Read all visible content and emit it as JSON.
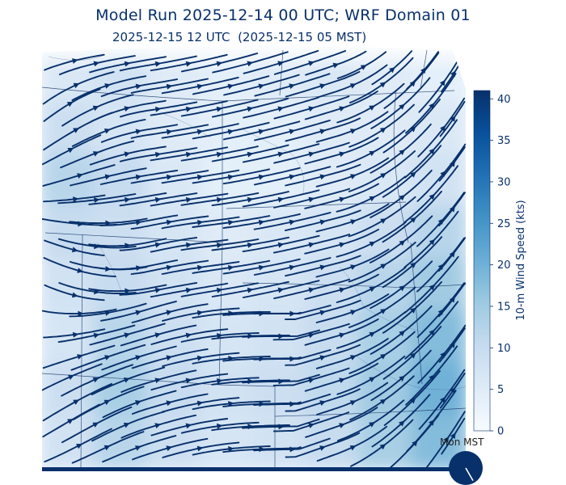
{
  "header": {
    "title": "Model Run 2025-12-14 00 UTC; WRF Domain 01",
    "subtitle": "2025-12-15 12 UTC  (2025-12-15 05 MST)"
  },
  "clock": {
    "label": "Mon MST",
    "hour": 5,
    "minute": 0
  },
  "colors": {
    "streamline": "#08306b",
    "colormap": [
      "#f7fbff",
      "#deebf7",
      "#c6dbef",
      "#9ecae1",
      "#6baed6",
      "#4292c6",
      "#2171b5",
      "#08519c",
      "#08306b"
    ]
  },
  "chart_data": {
    "type": "heatmap",
    "overlay": "streamlines",
    "colorbar": {
      "label": "10-m Wind Speed (kts)",
      "min": 0,
      "max": 41,
      "ticks": [
        0,
        5,
        10,
        15,
        20,
        25,
        30,
        35,
        40
      ]
    },
    "wind_field_kts": {
      "grid": "8 rows x 8 cols, north to south, west to east",
      "values": [
        [
          6,
          8,
          5,
          4,
          5,
          6,
          5,
          4
        ],
        [
          9,
          7,
          5,
          4,
          4,
          5,
          5,
          6
        ],
        [
          12,
          10,
          6,
          4,
          4,
          5,
          6,
          8
        ],
        [
          10,
          9,
          7,
          5,
          6,
          7,
          9,
          12
        ],
        [
          8,
          10,
          8,
          6,
          7,
          9,
          12,
          15
        ],
        [
          7,
          12,
          9,
          7,
          8,
          10,
          14,
          18
        ],
        [
          9,
          14,
          10,
          8,
          9,
          11,
          15,
          20
        ],
        [
          8,
          12,
          9,
          7,
          8,
          10,
          14,
          18
        ]
      ]
    }
  }
}
